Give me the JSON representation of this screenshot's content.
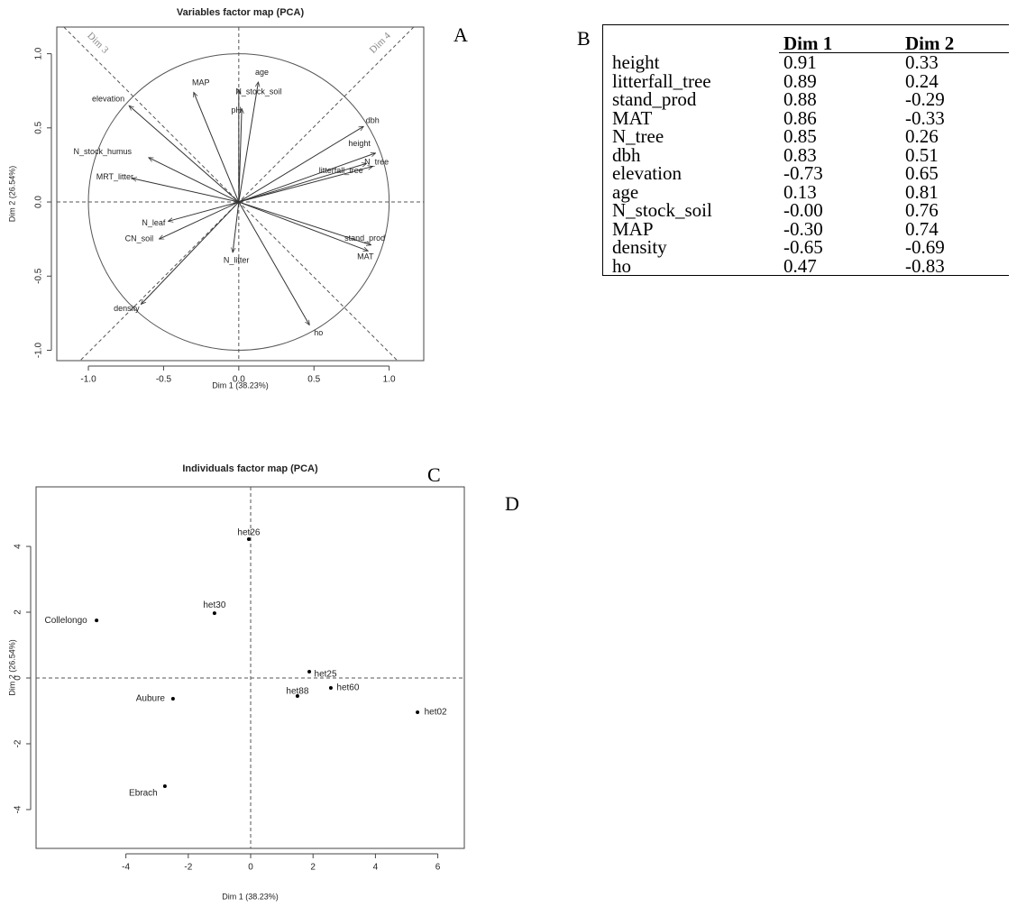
{
  "panel_labels": [
    "A",
    "B",
    "C",
    "D"
  ],
  "chart_data": [
    {
      "type": "vectors",
      "title": "Variables factor map (PCA)",
      "x_label": "Dim 1 (38.23%)",
      "y_label": "Dim 2 (26.54%)",
      "labels": [
        "height",
        "litterfall_tree",
        "stand_prod",
        "MAT",
        "N_tree",
        "dbh",
        "elevation",
        "age",
        "N_stock_soil",
        "MAP",
        "density",
        "ho",
        "pH",
        "N_stock_humus",
        "MRT_litter",
        "N_leaf",
        "CN_soil",
        "N_litter"
      ],
      "x": [
        0.91,
        0.89,
        0.88,
        0.86,
        0.85,
        0.83,
        -0.73,
        0.13,
        0.0,
        -0.3,
        -0.65,
        0.47,
        0.02,
        -0.6,
        -0.71,
        -0.47,
        -0.53,
        -0.04
      ],
      "values": [
        0.33,
        0.24,
        -0.29,
        -0.33,
        0.26,
        0.51,
        0.65,
        0.81,
        0.76,
        0.74,
        -0.69,
        -0.83,
        0.63,
        0.3,
        0.16,
        -0.13,
        -0.25,
        -0.34
      ],
      "color": "#333333",
      "annotations": [
        "Dim 3",
        "Dim 4"
      ],
      "xlim": [
        -1.21,
        1.23
      ],
      "ylim": [
        -1.07,
        1.18
      ],
      "xticks": [
        {
          "value": -1,
          "label": "-1.0"
        },
        -0.5,
        {
          "value": 0,
          "label": "0.0"
        },
        0.5,
        {
          "value": 1,
          "label": "1.0"
        }
      ],
      "yticks": [
        {
          "value": -1,
          "label": "-1.0"
        },
        -0.5,
        {
          "value": 0,
          "label": "0.0"
        },
        0.5,
        {
          "value": 1,
          "label": "1.0"
        }
      ]
    },
    {
      "type": "scatter",
      "title": "Individuals factor map (PCA)",
      "x_label": "Dim 1 (38.23%)",
      "y_label": "Dim 2 (26.54%)",
      "labels": [
        "het26",
        "het30",
        "Collelongo",
        "het25",
        "het88",
        "het60",
        "het02",
        "Aubure",
        "Ebrach"
      ],
      "x": [
        -0.06,
        -1.16,
        -4.94,
        1.88,
        1.5,
        2.57,
        5.35,
        -2.49,
        -2.75
      ],
      "values": [
        4.22,
        1.97,
        1.75,
        0.19,
        -0.55,
        -0.3,
        -1.04,
        -0.63,
        -3.29
      ],
      "color": "#000000",
      "xlim": [
        -6.88,
        6.85
      ],
      "ylim": [
        -5.18,
        5.81
      ],
      "xticks": [
        -4,
        -2,
        0,
        2,
        4,
        6
      ],
      "yticks": [
        -4,
        -2,
        0,
        2,
        4
      ]
    }
  ],
  "table": {
    "header": [
      "Dim 1",
      "Dim 2"
    ],
    "rows": [
      [
        "height",
        "0.91",
        "0.33"
      ],
      [
        "litterfall_tree",
        "0.89",
        "0.24"
      ],
      [
        "stand_prod",
        "0.88",
        "-0.29"
      ],
      [
        "MAT",
        "0.86",
        "-0.33"
      ],
      [
        "N_tree",
        "0.85",
        "0.26"
      ],
      [
        "dbh",
        "0.83",
        "0.51"
      ],
      [
        "elevation",
        "-0.73",
        "0.65"
      ],
      [
        "age",
        "0.13",
        "0.81"
      ],
      [
        "N_stock_soil",
        "-0.00",
        "0.76"
      ],
      [
        "MAP",
        "-0.30",
        "0.74"
      ],
      [
        "density",
        "-0.65",
        "-0.69"
      ],
      [
        "ho",
        "0.47",
        "-0.83"
      ]
    ]
  }
}
